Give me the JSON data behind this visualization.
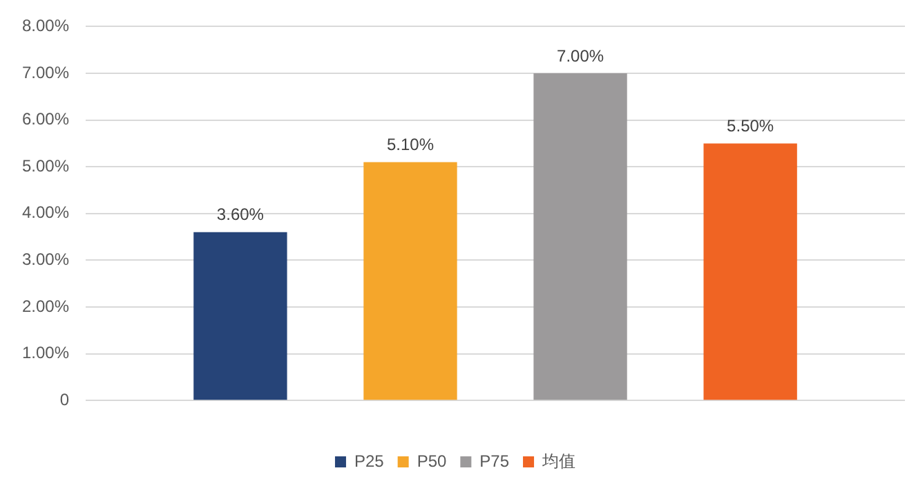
{
  "chart_data": {
    "type": "bar",
    "categories": [
      null
    ],
    "series": [
      {
        "name": "P25",
        "color": "#264478",
        "values": [
          3.6
        ],
        "value_labels": [
          "3.60%"
        ]
      },
      {
        "name": "P50",
        "color": "#f5a62b",
        "values": [
          5.1
        ],
        "value_labels": [
          "5.10%"
        ]
      },
      {
        "name": "P75",
        "color": "#9c9a9b",
        "values": [
          7.0
        ],
        "value_labels": [
          "7.00%"
        ]
      },
      {
        "name": "均值",
        "color": "#f06423",
        "values": [
          5.5
        ],
        "value_labels": [
          "5.50%"
        ]
      }
    ],
    "ylim": [
      0,
      8
    ],
    "yticks": [
      0,
      {
        "value": 1,
        "label": "1.00%"
      },
      {
        "value": 2,
        "label": "2.00%"
      },
      {
        "value": 3,
        "label": "3.00%"
      },
      {
        "value": 4,
        "label": "4.00%"
      },
      {
        "value": 5,
        "label": "5.00%"
      },
      {
        "value": 6,
        "label": "6.00%"
      },
      {
        "value": 7,
        "label": "7.00%"
      },
      {
        "value": 8,
        "label": "8.00%"
      }
    ],
    "grid": "y",
    "legend": "bottom"
  }
}
